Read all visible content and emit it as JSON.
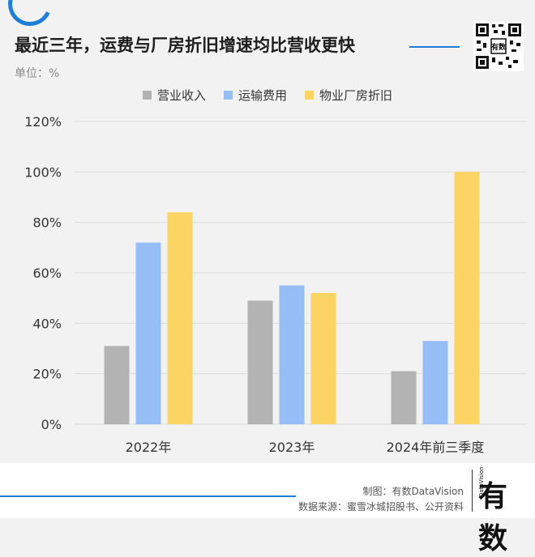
{
  "header": {
    "title": "最近三年，运费与厂房折旧增速均比营收更快",
    "unit": "单位：%"
  },
  "colors": {
    "accent": "#1f7fd8",
    "revenue": "#b3b3b3",
    "freight": "#97bdf7",
    "depreciation": "#fbd463"
  },
  "chart_data": {
    "type": "bar",
    "categories": [
      "2022年",
      "2023年",
      "2024年前三季度"
    ],
    "series": [
      {
        "name": "营业收入",
        "values": [
          31,
          49,
          21
        ]
      },
      {
        "name": "运输费用",
        "values": [
          72,
          55,
          33
        ]
      },
      {
        "name": "物业厂房折旧",
        "values": [
          84,
          52,
          100
        ]
      }
    ],
    "ylim": [
      0,
      120
    ],
    "yticks": [
      0,
      20,
      40,
      60,
      80,
      100,
      120
    ],
    "ytick_labels": [
      "0%",
      "20%",
      "40%",
      "60%",
      "80%",
      "100%",
      "120%"
    ],
    "grid": true,
    "legend": "top-center"
  },
  "footer": {
    "credit": "制图：有数DataVision",
    "source": "数据来源：蜜雪冰城招股书、公开资料",
    "logo_text": "有数",
    "logo_sub": "DataVision"
  }
}
